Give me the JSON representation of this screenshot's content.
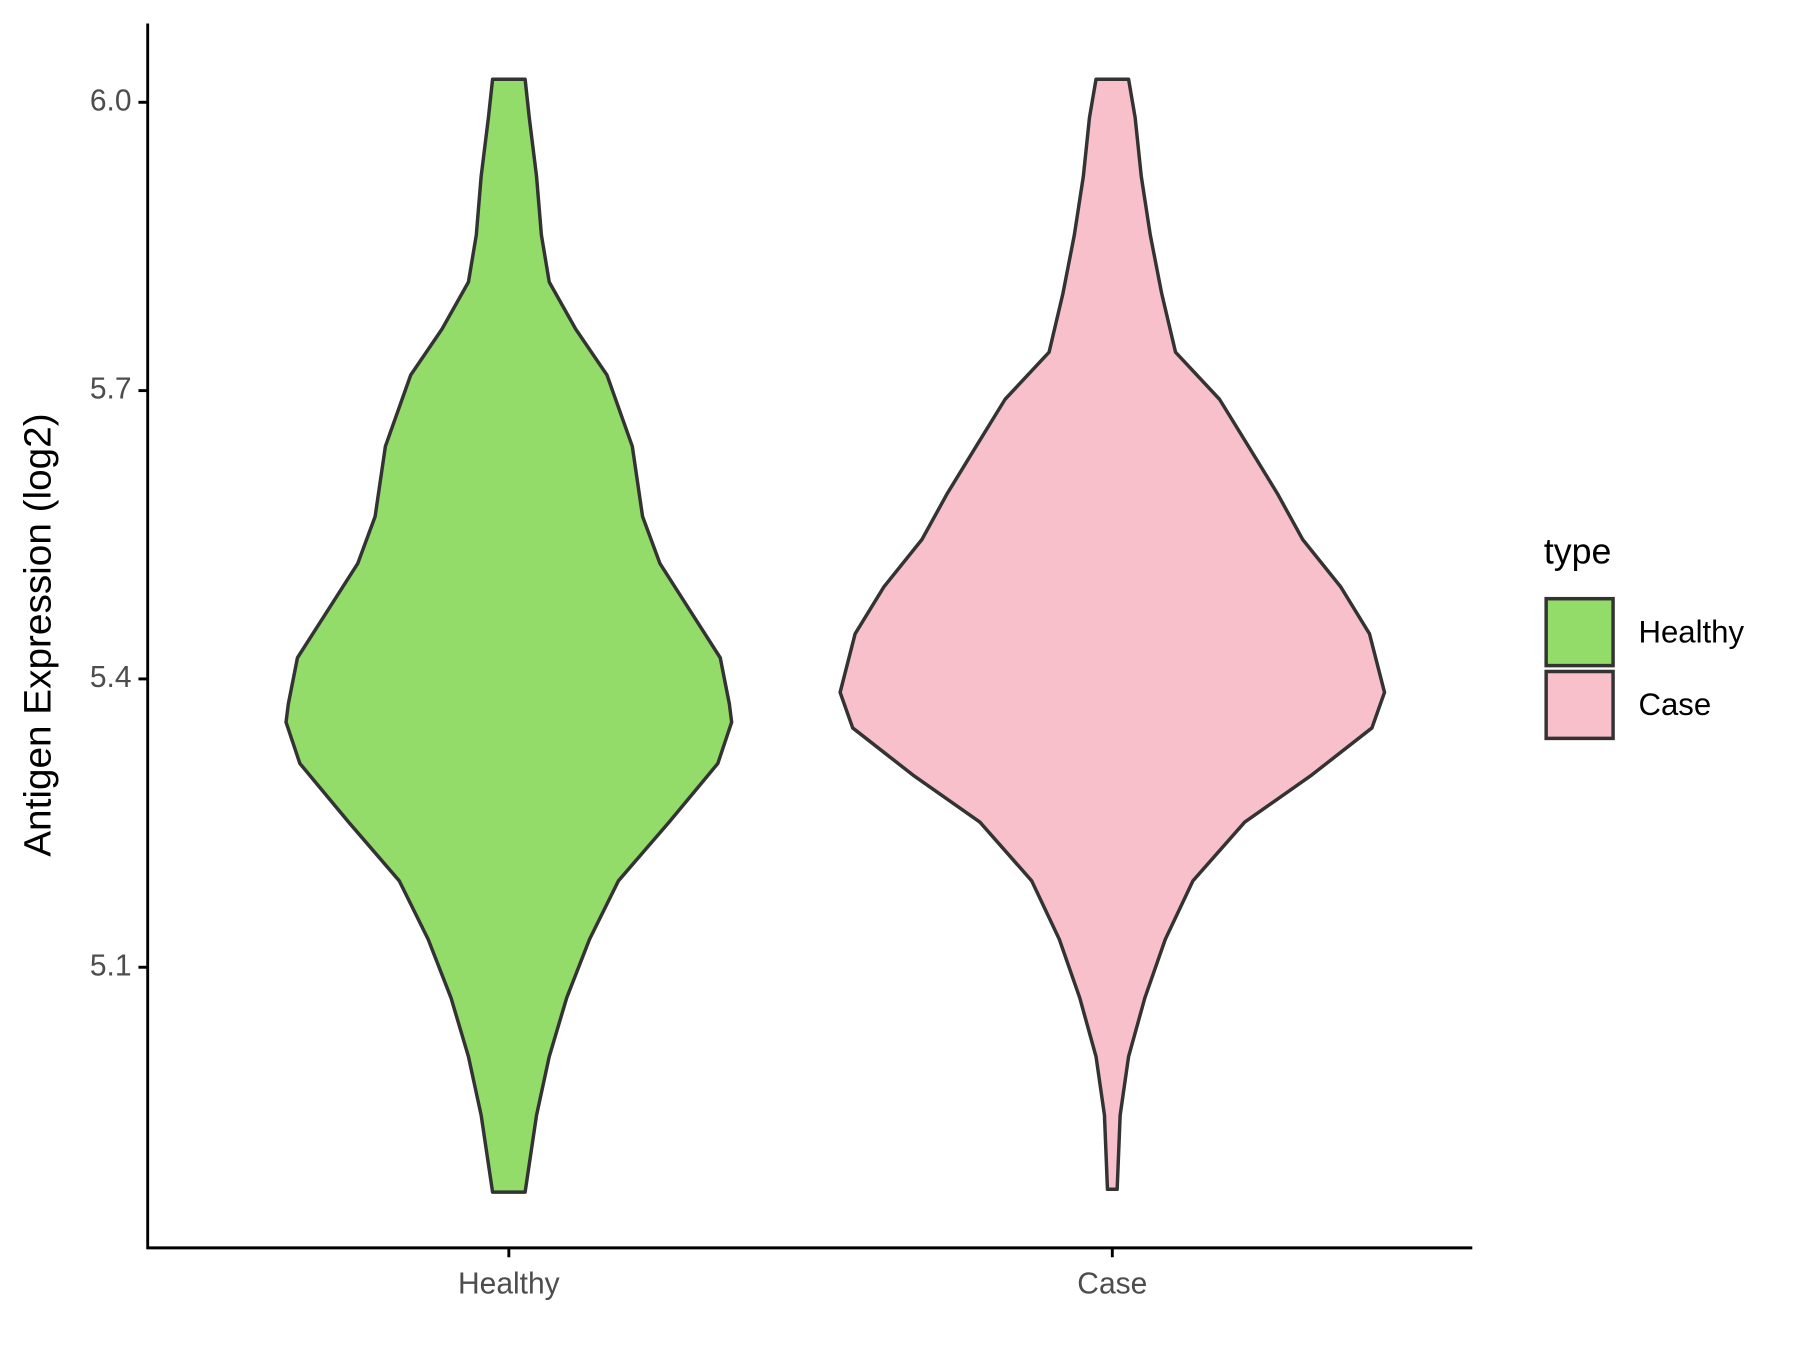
{
  "chart_data": {
    "type": "violin",
    "y_label": "Antigen Expression (log2)",
    "categories": [
      "Healthy",
      "Case"
    ],
    "legend_title": "type",
    "ylim": [
      4.808,
      6.082
    ],
    "yticks": [
      {
        "value": 6.0,
        "label": "6.0"
      },
      5.7,
      5.4,
      5.1
    ],
    "series": [
      {
        "name": "Healthy",
        "color": "#93dc6a",
        "y": [
          6.024,
          5.984,
          5.923,
          5.862,
          5.813,
          5.764,
          5.716,
          5.642,
          5.569,
          5.52,
          5.471,
          5.422,
          5.374,
          5.355,
          5.312,
          5.251,
          5.19,
          5.129,
          5.068,
          5.007,
          4.946,
          4.866
        ],
        "width": [
          0.027,
          0.034,
          0.046,
          0.054,
          0.067,
          0.111,
          0.163,
          0.205,
          0.222,
          0.251,
          0.301,
          0.351,
          0.366,
          0.37,
          0.347,
          0.266,
          0.182,
          0.134,
          0.096,
          0.067,
          0.046,
          0.027
        ]
      },
      {
        "name": "Case",
        "color": "#f7c0cb",
        "y": [
          6.024,
          5.984,
          5.923,
          5.862,
          5.801,
          5.74,
          5.691,
          5.642,
          5.593,
          5.545,
          5.496,
          5.447,
          5.386,
          5.349,
          5.3,
          5.251,
          5.19,
          5.129,
          5.068,
          5.007,
          4.946,
          4.869
        ],
        "width": [
          0.027,
          0.038,
          0.048,
          0.063,
          0.082,
          0.105,
          0.178,
          0.226,
          0.274,
          0.316,
          0.379,
          0.427,
          0.452,
          0.431,
          0.331,
          0.22,
          0.134,
          0.088,
          0.054,
          0.027,
          0.013,
          0.008
        ]
      }
    ]
  }
}
